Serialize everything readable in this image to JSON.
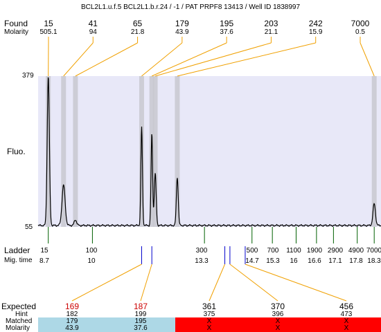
{
  "title": "BCL2L1.u.f.5  BCL2L1.b.r.24 / -1 / PAT PRPF8 13413 / Well ID 1838997",
  "labels": {
    "found": "Found",
    "molarity": "Molarity",
    "fluo": "Fluo.",
    "ladder": "Ladder",
    "mig_time": "Mig. time",
    "expected": "Expected",
    "hint": "Hint",
    "matched": "Matched",
    "molarity_bottom": "Molarity"
  },
  "colors": {
    "plot_bg": "#e8e8f8",
    "band": "#c8c8d0",
    "trace": "#000000",
    "connector": "#f0a000",
    "ladder_tick": "#006000",
    "found_tick": "#0000cc",
    "expected_red": "#cc0000",
    "matched_ok": "#add8e6",
    "matched_fail": "#ff0000"
  },
  "chart_data": {
    "type": "line",
    "ylabel": "Fluo.",
    "ylim": [
      55,
      379
    ],
    "y_ticks": [
      "379",
      "55"
    ],
    "x_axis": "migration time",
    "xlim": [
      8.4,
      18.5
    ],
    "ladder": [
      {
        "size": "15",
        "time": 8.7
      },
      {
        "size": "100",
        "time": 10
      },
      {
        "size": "300",
        "time": 13.3
      },
      {
        "size": "500",
        "time": 14.7
      },
      {
        "size": "700",
        "time": 15.3
      },
      {
        "size": "1100",
        "time": 16
      },
      {
        "size": "1900",
        "time": 16.6
      },
      {
        "size": "2900",
        "time": 17.1
      },
      {
        "size": "4900",
        "time": 17.8
      },
      {
        "size": "7000",
        "time": 18.3
      }
    ],
    "found_peaks": [
      {
        "size": "15",
        "molarity": "505.1",
        "time": 8.7
      },
      {
        "size": "41",
        "molarity": "94",
        "time": 9.15
      },
      {
        "size": "65",
        "molarity": "21.8",
        "time": 9.5
      },
      {
        "size": "179",
        "molarity": "43.9",
        "time": 11.45
      },
      {
        "size": "195",
        "molarity": "37.6",
        "time": 11.75
      },
      {
        "size": "203",
        "molarity": "21.1",
        "time": 11.85
      },
      {
        "size": "242",
        "molarity": "15.9",
        "time": 12.5
      },
      {
        "size": "7000",
        "molarity": "0.5",
        "time": 18.3
      }
    ],
    "peak_heights": [
      {
        "time": 8.7,
        "value": 379,
        "width": 0.07
      },
      {
        "time": 9.15,
        "value": 145,
        "width": 0.1
      },
      {
        "time": 9.5,
        "value": 70,
        "width": 0.08
      },
      {
        "time": 11.45,
        "value": 270,
        "width": 0.05
      },
      {
        "time": 11.75,
        "value": 255,
        "width": 0.05
      },
      {
        "time": 11.85,
        "value": 170,
        "width": 0.06
      },
      {
        "time": 12.5,
        "value": 162,
        "width": 0.06
      },
      {
        "time": 18.3,
        "value": 105,
        "width": 0.08
      }
    ],
    "baseline": 58,
    "marker_times_upper": [
      11.45,
      11.75
    ],
    "marker_times_lower": [
      13.9,
      14.05,
      14.5
    ],
    "expected": [
      {
        "value": "169",
        "hint": "182",
        "matched": "179",
        "molarity": "43.9",
        "status": "ok",
        "marker": 0
      },
      {
        "value": "187",
        "hint": "199",
        "matched": "195",
        "molarity": "37.6",
        "status": "ok",
        "marker": 1
      },
      {
        "value": "361",
        "hint": "375",
        "matched": "X",
        "molarity": "X",
        "status": "fail",
        "marker": 2
      },
      {
        "value": "370",
        "hint": "396",
        "matched": "X",
        "molarity": "X",
        "status": "fail",
        "marker": 3
      },
      {
        "value": "456",
        "hint": "473",
        "matched": "X",
        "molarity": "X",
        "status": "fail",
        "marker": 4
      }
    ]
  }
}
